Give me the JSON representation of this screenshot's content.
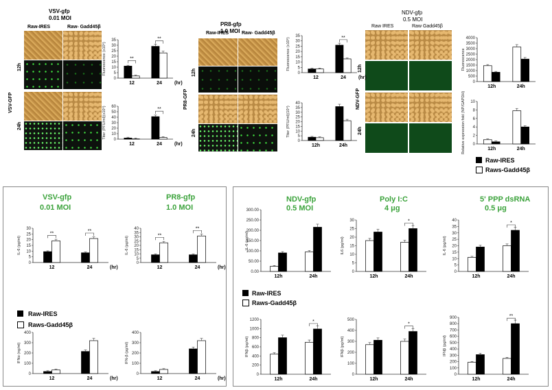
{
  "colors": {
    "green": "#3aa23a",
    "black": "#000000",
    "white": "#ffffff"
  },
  "top": {
    "vsv": {
      "title1": "VSV-gfp",
      "title2": "0.01 MOI",
      "col1": "Raw-IRES",
      "col2": "Raw- Gadd45β",
      "row1": "12h",
      "row2": "24h",
      "side": "VSV-GFP"
    },
    "pr8": {
      "title1": "PR8-gfp",
      "title2": "1.0 MOI",
      "col1": "Raw-IRES",
      "col2": "Raw- Gadd45β",
      "row1": "12h",
      "row2": "24h",
      "side": "PR8-GFP"
    },
    "ndv": {
      "title1": "NDV-gfp",
      "title2": "0.5 MOI",
      "col1": "Raw IRES",
      "col2": "Raw Gadd45β",
      "row1": "12h",
      "row2": "24h",
      "side": "NDV-GFP"
    },
    "legend": {
      "item1": "Raw-IRES",
      "item2": "Raws-Gadd45β"
    }
  },
  "bottom": {
    "left": {
      "vsv_title1": "VSV-gfp",
      "vsv_title2": "0.01 MOI",
      "pr8_title1": "PR8-gfp",
      "pr8_title2": "1.0 MOI",
      "legend1": "Raw-IRES",
      "legend2": "Raws-Gadd45β"
    },
    "right": {
      "ndv_title1": "NDV-gfp",
      "ndv_title2": "0.5 MOI",
      "poly_title1": "Poly I:C",
      "poly_title2": "4 μg",
      "ppp_title1": "5' PPP dsRNA",
      "ppp_title2": "0.5 μg",
      "legend1": "Raw-IRES",
      "legend2": "Raws-Gadd45β"
    }
  },
  "chart_data": [
    {
      "id": "c1",
      "type": "bar",
      "ylabel": "Fluorescence (x10⁶)",
      "categories": [
        "12",
        "24"
      ],
      "xunit": "(hr)",
      "ylim": [
        0,
        35
      ],
      "ticks": [
        0,
        5,
        10,
        15,
        20,
        25,
        30,
        35
      ],
      "series": [
        {
          "name": "Raw-IRES",
          "values": [
            11,
            29
          ]
        },
        {
          "name": "Raws-Gadd45β",
          "values": [
            2,
            23
          ]
        }
      ],
      "sig": [
        "**",
        "**"
      ]
    },
    {
      "id": "c2",
      "type": "bar",
      "ylabel": "Titer (PFU/ml)(x10⁶)",
      "categories": [
        "12",
        "24"
      ],
      "xunit": "(hr)",
      "ylim": [
        0,
        60
      ],
      "ticks": [
        0,
        10,
        20,
        30,
        40,
        50,
        60
      ],
      "series": [
        {
          "name": "Raw-IRES",
          "values": [
            2,
            41
          ]
        },
        {
          "name": "Raws-Gadd45β",
          "values": [
            0.5,
            3
          ]
        }
      ],
      "sig": [
        "",
        "**"
      ]
    },
    {
      "id": "c3",
      "type": "bar",
      "ylabel": "Fluorescence (x10⁶)",
      "categories": [
        "12",
        "24"
      ],
      "xunit": "(hr)",
      "ylim": [
        0,
        35
      ],
      "ticks": [
        0,
        5,
        10,
        15,
        20,
        25,
        30,
        35
      ],
      "series": [
        {
          "name": "Raw-IRES",
          "values": [
            3.5,
            26
          ]
        },
        {
          "name": "Raws-Gadd45β",
          "values": [
            3.5,
            13
          ]
        }
      ],
      "sig": [
        "",
        "**"
      ]
    },
    {
      "id": "c4",
      "type": "bar",
      "ylabel": "Titer (PFU/ml)(10⁴)",
      "categories": [
        "12h",
        "24h"
      ],
      "xunit": "",
      "ylim": [
        0,
        40
      ],
      "ticks": [
        0,
        5,
        10,
        15,
        20,
        25,
        30,
        35,
        40
      ],
      "series": [
        {
          "name": "Raw-IRES",
          "values": [
            3.5,
            36
          ]
        },
        {
          "name": "Raws-Gadd45β",
          "values": [
            3,
            21
          ]
        }
      ],
      "sig": [
        "",
        ""
      ]
    },
    {
      "id": "c5",
      "type": "bar",
      "ylabel": "Fluorescence",
      "categories": [
        "12h",
        "24h"
      ],
      "xunit": "",
      "ylim": [
        0,
        4000
      ],
      "ticks": [
        0,
        500,
        1000,
        1500,
        2000,
        2500,
        3000,
        3500,
        4000
      ],
      "series": [
        {
          "name": "Raws-Gadd45β",
          "values": [
            1450,
            3150
          ]
        },
        {
          "name": "Raw-IRES",
          "values": [
            850,
            2050
          ]
        }
      ],
      "sig": [
        "",
        ""
      ]
    },
    {
      "id": "c6",
      "type": "bar",
      "ylabel": "Relative expression fold (NP/GAPDH)",
      "categories": [
        "12h",
        "24h"
      ],
      "xunit": "",
      "ylim": [
        0,
        10
      ],
      "ticks": [
        0,
        2,
        4,
        6,
        8,
        10
      ],
      "series": [
        {
          "name": "Raws-Gadd45β",
          "values": [
            1,
            7.8
          ]
        },
        {
          "name": "Raw-IRES",
          "values": [
            0.5,
            4
          ]
        }
      ],
      "sig": [
        "",
        ""
      ]
    },
    {
      "id": "c7",
      "type": "bar",
      "ylabel": "IL-6 (pg/ml)",
      "categories": [
        "12",
        "24"
      ],
      "xunit": "(hr)",
      "ylim": [
        0,
        30
      ],
      "ticks": [
        0,
        5,
        10,
        15,
        20,
        25,
        30
      ],
      "series": [
        {
          "name": "Raw-IRES",
          "values": [
            9.5,
            8.5
          ]
        },
        {
          "name": "Raws-Gadd45β",
          "values": [
            19,
            21
          ]
        }
      ],
      "sig": [
        "**",
        "**"
      ]
    },
    {
      "id": "c8",
      "type": "bar",
      "ylabel": "IL-6 (pg/ml)",
      "categories": [
        "12",
        "24"
      ],
      "xunit": "(hr)",
      "ylim": [
        0,
        40
      ],
      "ticks": [
        0,
        5,
        10,
        15,
        20,
        25,
        30,
        35,
        40
      ],
      "series": [
        {
          "name": "Raw-IRES",
          "values": [
            9,
            9
          ]
        },
        {
          "name": "Raws-Gadd45β",
          "values": [
            23,
            31
          ]
        }
      ],
      "sig": [
        "**",
        "**"
      ]
    },
    {
      "id": "c9",
      "type": "bar",
      "ylabel": "IFNα (ng/ml)",
      "categories": [
        "12",
        "24"
      ],
      "xunit": "(hr)",
      "ylim": [
        0,
        400
      ],
      "ticks": [
        0,
        100,
        200,
        300,
        400
      ],
      "series": [
        {
          "name": "Raw-IRES",
          "values": [
            20,
            215
          ]
        },
        {
          "name": "Raws-Gadd45β",
          "values": [
            35,
            320
          ]
        }
      ],
      "sig": [
        "",
        ""
      ]
    },
    {
      "id": "c10",
      "type": "bar",
      "ylabel": "IFN-β (pg/ml)",
      "categories": [
        "12",
        "24"
      ],
      "xunit": "(hr)",
      "ylim": [
        0,
        400
      ],
      "ticks": [
        0,
        100,
        200,
        300,
        400
      ],
      "series": [
        {
          "name": "Raw-IRES",
          "values": [
            20,
            240
          ]
        },
        {
          "name": "Raws-Gadd45β",
          "values": [
            40,
            320
          ]
        }
      ],
      "sig": [
        "",
        ""
      ]
    },
    {
      "id": "c11",
      "type": "bar",
      "ylabel": "IL-6 (pg/ml)",
      "categories": [
        "12h",
        "24h"
      ],
      "xunit": "",
      "ylim": [
        0,
        300
      ],
      "ticks": [
        0,
        50,
        100,
        150,
        200,
        250,
        300
      ],
      "tickfmt": "%.2f",
      "series": [
        {
          "name": "Raws-Gadd45β",
          "values": [
            25,
            95
          ]
        },
        {
          "name": "Raw-IRES",
          "values": [
            90,
            215
          ]
        }
      ],
      "sig": [
        "",
        ""
      ]
    },
    {
      "id": "c12",
      "type": "bar",
      "ylabel": "IL6 (pg/ml)",
      "categories": [
        "12h",
        "24h"
      ],
      "xunit": "",
      "ylim": [
        0,
        30
      ],
      "ticks": [
        0,
        5,
        10,
        15,
        20,
        25,
        30
      ],
      "series": [
        {
          "name": "Raws-Gadd45β",
          "values": [
            18,
            17
          ]
        },
        {
          "name": "Raw-IRES",
          "values": [
            23,
            25
          ]
        }
      ],
      "sig": [
        "",
        "*"
      ]
    },
    {
      "id": "c13",
      "type": "bar",
      "ylabel": "IL-6 (pg/ml)",
      "categories": [
        "12h",
        "24h"
      ],
      "xunit": "",
      "ylim": [
        0,
        40
      ],
      "ticks": [
        0,
        5,
        10,
        15,
        20,
        25,
        30,
        35,
        40
      ],
      "series": [
        {
          "name": "Raws-Gadd45β",
          "values": [
            11,
            20
          ]
        },
        {
          "name": "Raw-IRES",
          "values": [
            19,
            32
          ]
        }
      ],
      "sig": [
        "",
        "*"
      ]
    },
    {
      "id": "c14",
      "type": "bar",
      "ylabel": "IFNβ (pg/ml)",
      "categories": [
        "12h",
        "24h"
      ],
      "xunit": "",
      "ylim": [
        0,
        1200
      ],
      "ticks": [
        0,
        200,
        400,
        600,
        800,
        1000,
        1200
      ],
      "series": [
        {
          "name": "Raws-Gadd45β",
          "values": [
            440,
            700
          ]
        },
        {
          "name": "Raw-IRES",
          "values": [
            800,
            990
          ]
        }
      ],
      "sig": [
        "",
        "*"
      ]
    },
    {
      "id": "c15",
      "type": "bar",
      "ylabel": "IFNβ (pg/ml)",
      "categories": [
        "12h",
        "24h"
      ],
      "xunit": "",
      "ylim": [
        0,
        500
      ],
      "ticks": [
        0,
        100,
        200,
        300,
        400,
        500
      ],
      "series": [
        {
          "name": "Raws-Gadd45β",
          "values": [
            270,
            300
          ]
        },
        {
          "name": "Raw-IRES",
          "values": [
            310,
            390
          ]
        }
      ],
      "sig": [
        "",
        "*"
      ]
    },
    {
      "id": "c16",
      "type": "bar",
      "ylabel": "IFNβ (pg/ml)",
      "categories": [
        "12h",
        "24h"
      ],
      "xunit": "",
      "ylim": [
        0,
        900
      ],
      "ticks": [
        0,
        100,
        200,
        300,
        400,
        500,
        600,
        700,
        800,
        900
      ],
      "series": [
        {
          "name": "Raws-Gadd45β",
          "values": [
            190,
            250
          ]
        },
        {
          "name": "Raw-IRES",
          "values": [
            310,
            800
          ]
        }
      ],
      "sig": [
        "",
        "**"
      ]
    }
  ]
}
